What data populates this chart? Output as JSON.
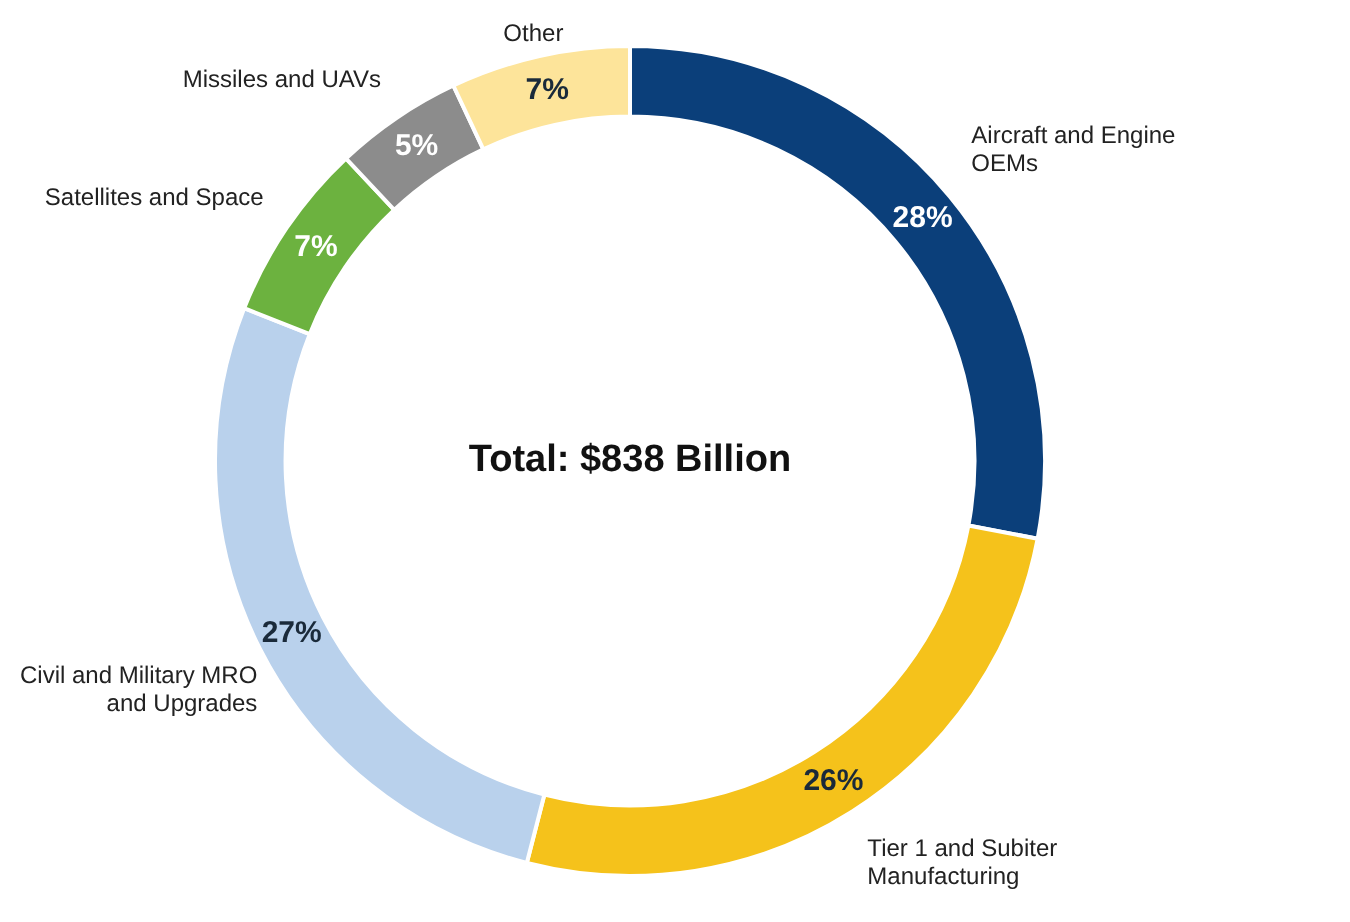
{
  "chart_data": {
    "type": "donut",
    "categories": [
      "Aircraft and Engine OEMs",
      "Tier 1 and Subiter Manufacturing",
      "Civil and Military MRO and Upgrades",
      "Satellites and Space",
      "Missiles and UAVs",
      "Other"
    ],
    "values": [
      28,
      26,
      27,
      7,
      5,
      7
    ],
    "value_labels": [
      "28%",
      "26%",
      "27%",
      "7%",
      "5%",
      "7%"
    ],
    "colors": [
      "#0b3f7a",
      "#f5c21b",
      "#b9d1ec",
      "#6cb23f",
      "#8c8c8c",
      "#fde49a"
    ],
    "annotations": [
      "Total: $838 Billion"
    ],
    "legend": false
  }
}
